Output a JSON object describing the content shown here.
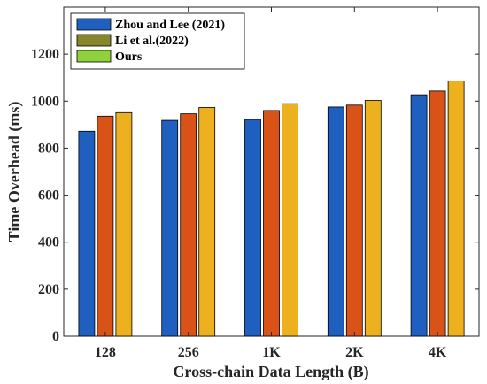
{
  "chart_data": {
    "type": "bar",
    "title": "",
    "xlabel": "Cross-chain Data Length (B)",
    "ylabel": "Time Overhead (ms)",
    "categories": [
      "128",
      "256",
      "1K",
      "2K",
      "4K"
    ],
    "ylim": [
      0,
      1400
    ],
    "yticks": [
      0,
      200,
      400,
      600,
      800,
      1000,
      1200
    ],
    "grid": false,
    "legend_position": "top-left",
    "series": [
      {
        "name": "Zhou and Lee (2021)",
        "color": "#1f5fbf",
        "values": [
          872,
          918,
          922,
          975,
          1027
        ]
      },
      {
        "name": "Li et al.(2022)",
        "color": "#d95319",
        "values": [
          936,
          946,
          960,
          983,
          1043
        ]
      },
      {
        "name": "Ours",
        "color": "#edb120",
        "values": [
          951,
          973,
          989,
          1003,
          1086
        ]
      }
    ],
    "legend_swatch_colors": [
      "#1f5fbf",
      "#86862a",
      "#8fd13a"
    ]
  }
}
